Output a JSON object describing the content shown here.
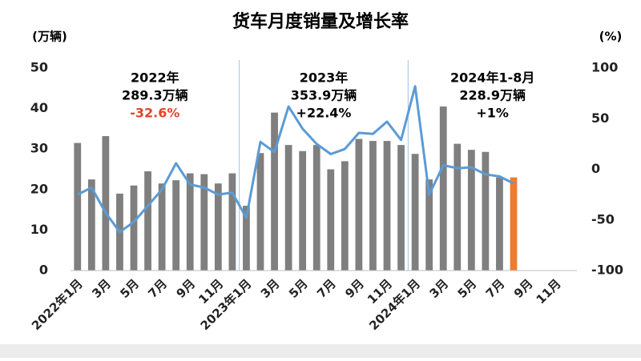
{
  "chart_data": {
    "type": "bar-line",
    "title": "货车月度销量及增长率",
    "y_label": "(万辆)",
    "y2_label": "(%)",
    "categories": [
      "2022年1月",
      null,
      "3月",
      null,
      "5月",
      null,
      "7月",
      null,
      "9月",
      null,
      "11月",
      null,
      "2023年1月",
      null,
      "3月",
      null,
      "5月",
      null,
      "7月",
      null,
      "9月",
      null,
      "11月",
      null,
      "2024年1月",
      null,
      "3月",
      null,
      "5月",
      null,
      "7月",
      null,
      "9月",
      null,
      "11月",
      null
    ],
    "series": [
      {
        "type": "bar",
        "axis": "y",
        "values": [
          31.5,
          22.5,
          33.2,
          19,
          21,
          24.5,
          21.5,
          22.3,
          24,
          23.8,
          21.5,
          24,
          16,
          29,
          39,
          31,
          29.5,
          31,
          25,
          27,
          32.5,
          32,
          32,
          31,
          28.8,
          22.5,
          40.5,
          31.3,
          29.8,
          29.3,
          23,
          23,
          null,
          null,
          null,
          null
        ],
        "colors": [
          "#7f7f7f",
          "#7f7f7f",
          "#7f7f7f",
          "#7f7f7f",
          "#7f7f7f",
          "#7f7f7f",
          "#7f7f7f",
          "#7f7f7f",
          "#7f7f7f",
          "#7f7f7f",
          "#7f7f7f",
          "#7f7f7f",
          "#7f7f7f",
          "#7f7f7f",
          "#7f7f7f",
          "#7f7f7f",
          "#7f7f7f",
          "#7f7f7f",
          "#7f7f7f",
          "#7f7f7f",
          "#7f7f7f",
          "#7f7f7f",
          "#7f7f7f",
          "#7f7f7f",
          "#7f7f7f",
          "#7f7f7f",
          "#7f7f7f",
          "#7f7f7f",
          "#7f7f7f",
          "#7f7f7f",
          "#7f7f7f",
          "#ed7d31",
          "#7f7f7f",
          "#7f7f7f",
          "#7f7f7f",
          "#7f7f7f"
        ]
      },
      {
        "type": "line",
        "axis": "y2",
        "color": "#5b9bd5",
        "values": [
          -25,
          -18,
          -43,
          -62,
          -52,
          -36,
          -20,
          6,
          -15,
          -18,
          -25,
          -23,
          -48,
          27,
          17,
          62,
          40,
          25,
          15,
          20,
          36,
          35,
          47,
          29,
          82,
          -25,
          4,
          1,
          2,
          -5,
          -7,
          -14,
          null,
          null,
          null,
          null
        ]
      }
    ],
    "ylim": [
      0,
      50
    ],
    "yticks": [
      0,
      10,
      20,
      30,
      40,
      50
    ],
    "y2lim": [
      -100,
      100
    ],
    "y2ticks": [
      -100,
      -50,
      0,
      50,
      100
    ],
    "annotations": [
      {
        "lines": [
          {
            "text": "2022年",
            "color": "#000000"
          },
          {
            "text": "289.3万辆",
            "color": "#000000"
          },
          {
            "text": "-32.6%",
            "color": "#e8412c"
          }
        ]
      },
      {
        "lines": [
          {
            "text": "2023年",
            "color": "#000000"
          },
          {
            "text": "353.9万辆",
            "color": "#000000"
          },
          {
            "text": "+22.4%",
            "color": "#000000"
          }
        ]
      },
      {
        "lines": [
          {
            "text": "2024年1-8月",
            "color": "#000000"
          },
          {
            "text": "228.9万辆",
            "color": "#000000"
          },
          {
            "text": "+1%",
            "color": "#000000"
          }
        ]
      }
    ]
  }
}
